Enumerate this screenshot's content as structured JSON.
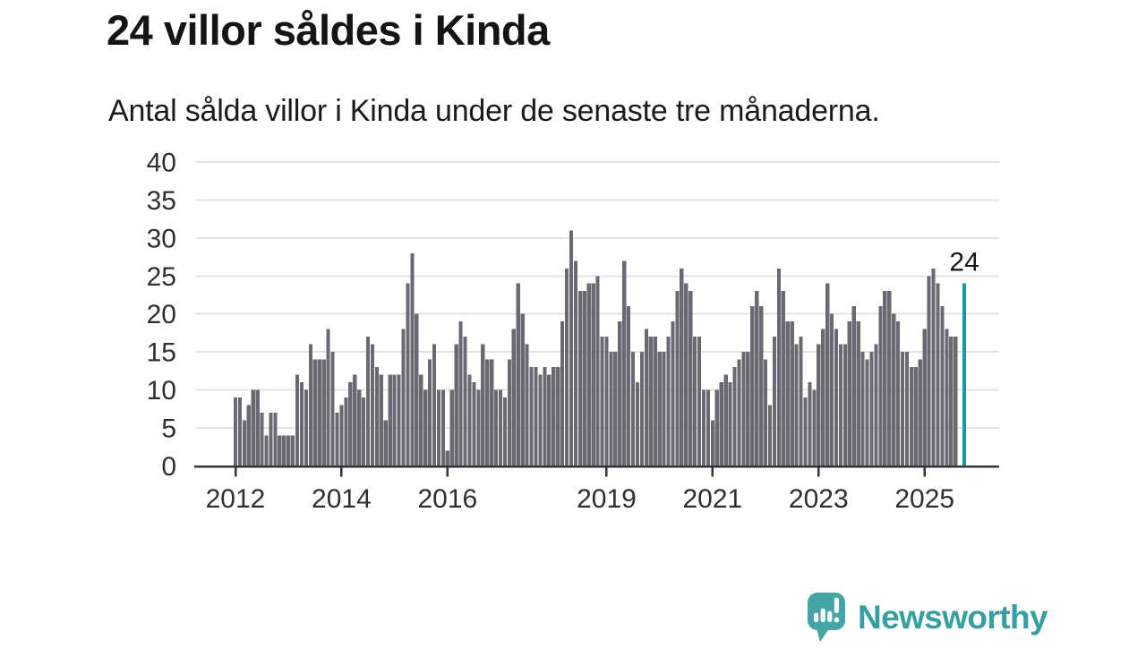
{
  "header": {
    "title": "24 villor såldes i Kinda",
    "subtitle": "Antal sålda villor i Kinda under de senaste tre månaderna."
  },
  "chart_data": {
    "type": "bar",
    "title": "24 villor såldes i Kinda",
    "subtitle": "Antal sålda villor i Kinda under de senaste tre månaderna.",
    "x_start": "2012-01",
    "x_frequency": "monthly",
    "values": [
      9,
      9,
      6,
      8,
      10,
      10,
      7,
      4,
      7,
      7,
      4,
      4,
      4,
      4,
      12,
      11,
      10,
      16,
      14,
      14,
      14,
      18,
      15,
      7,
      8,
      9,
      11,
      12,
      10,
      9,
      17,
      16,
      13,
      12,
      6,
      12,
      12,
      12,
      18,
      24,
      28,
      20,
      12,
      10,
      14,
      16,
      10,
      10,
      2,
      10,
      16,
      19,
      17,
      12,
      11,
      10,
      16,
      14,
      14,
      10,
      10,
      9,
      14,
      18,
      24,
      20,
      16,
      13,
      13,
      12,
      13,
      12,
      13,
      13,
      19,
      26,
      31,
      27,
      23,
      23,
      24,
      24,
      25,
      17,
      17,
      15,
      15,
      19,
      27,
      21,
      15,
      11,
      15,
      18,
      17,
      17,
      15,
      15,
      17,
      19,
      23,
      26,
      24,
      23,
      17,
      17,
      10,
      10,
      6,
      10,
      11,
      12,
      11,
      13,
      14,
      15,
      15,
      21,
      23,
      21,
      14,
      8,
      17,
      26,
      23,
      19,
      19,
      16,
      17,
      9,
      11,
      10,
      16,
      18,
      24,
      20,
      18,
      16,
      16,
      19,
      21,
      19,
      15,
      14,
      15,
      16,
      21,
      23,
      23,
      20,
      19,
      15,
      15,
      13,
      13,
      14,
      18,
      25,
      26,
      24,
      21,
      18,
      17,
      17
    ],
    "highlight_bar": {
      "label": "24",
      "value": 24,
      "color": "#00a3a4",
      "gap_slots": 1
    },
    "ylim": [
      0,
      40
    ],
    "yticks": [
      0,
      5,
      10,
      15,
      20,
      25,
      30,
      35,
      40
    ],
    "xtick_years": [
      "2012",
      "2014",
      "2016",
      "2019",
      "2021",
      "2023",
      "2025"
    ],
    "grid": "horizontal",
    "legend": "none",
    "bar_color": "#686972",
    "axis_color": "#33333a",
    "grid_color": "#e3e3e5",
    "tick_text_color": "#2e2e33",
    "highlight_label_color": "#141414"
  },
  "footer": {
    "brand": "Newsworthy",
    "brand_color": "#379fa1",
    "logo_icon": "speech-bubble-with-bar-chart-and-exclamation"
  }
}
